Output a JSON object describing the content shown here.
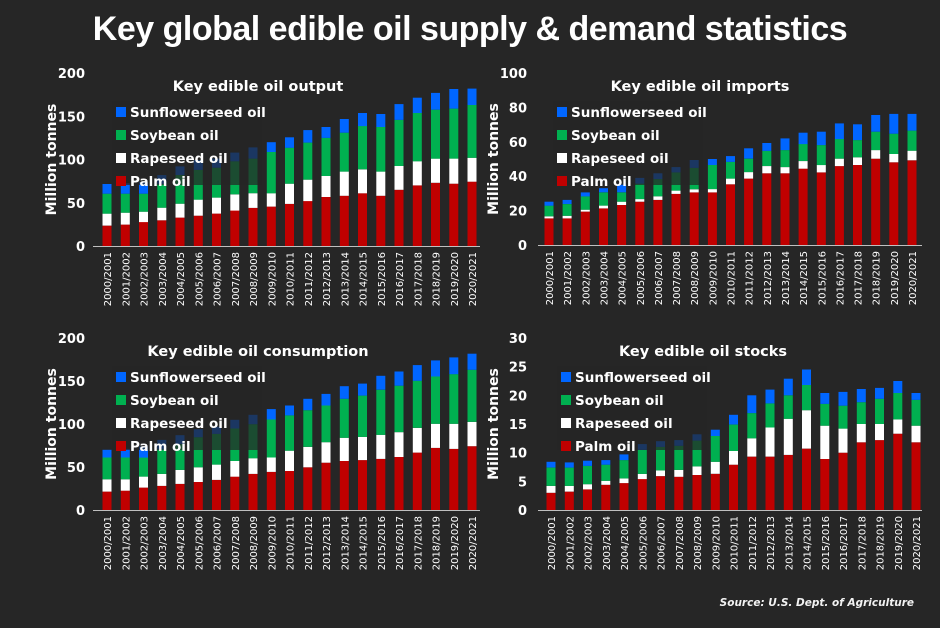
{
  "title": "Key global edible oil supply & demand statistics",
  "source": "Source: U.S. Dept. of Agriculture",
  "colors": {
    "background": "#262626",
    "Sunflowerseed oil": "#0066ff",
    "Soybean oil": "#00b050",
    "Rapeseed oil": "#ffffff",
    "Palm oil": "#c00000",
    "text": "#ffffff"
  },
  "chart_data": [
    {
      "type": "bar",
      "stacked": true,
      "title": "Key edible oil output",
      "ylabel": "Million tonnes",
      "xlabel": "",
      "ylim": [
        0,
        200
      ],
      "yticks": [
        0,
        50,
        100,
        150,
        200
      ],
      "legend": [
        "Sunflowerseed oil",
        "Soybean oil",
        "Rapeseed oil",
        "Palm oil"
      ],
      "legend_position": "top-left",
      "grid": false,
      "categories": [
        "2000/2001",
        "2001/2002",
        "2002/2003",
        "2003/2004",
        "2004/2005",
        "2005/2006",
        "2006/2007",
        "2007/2008",
        "2008/2009",
        "2009/2010",
        "2010/2011",
        "2011/2012",
        "2012/2013",
        "2013/2014",
        "2014/2015",
        "2015/2016",
        "2016/2017",
        "2017/2018",
        "2018/2019",
        "2019/2020",
        "2020/2021"
      ],
      "series": [
        {
          "name": "Palm oil",
          "values": [
            23.5,
            24.7,
            27.7,
            29.7,
            32.8,
            35.0,
            37.4,
            41.0,
            44.0,
            45.5,
            48.6,
            52.0,
            56.6,
            58.0,
            61.0,
            58.0,
            65.0,
            70.0,
            73.0,
            72.0,
            74.4
          ]
        },
        {
          "name": "Rapeseed oil",
          "values": [
            13.9,
            13.8,
            12.0,
            14.6,
            16.1,
            18.6,
            18.5,
            18.7,
            17.0,
            15.5,
            23.4,
            24.7,
            24.4,
            28.0,
            27.6,
            28.0,
            27.5,
            28.0,
            28.0,
            29.0,
            27.6
          ]
        },
        {
          "name": "Soybean oil",
          "values": [
            23.1,
            22.0,
            20.8,
            27.7,
            33.1,
            34.4,
            34.6,
            38.3,
            40.0,
            47.7,
            41.6,
            42.8,
            44.0,
            45.0,
            50.1,
            51.6,
            53.2,
            55.8,
            56.6,
            57.8,
            61.0
          ]
        },
        {
          "name": "Sunflowerseed oil",
          "values": [
            11.2,
            12.0,
            13.5,
            10.0,
            10.0,
            11.4,
            10.5,
            10.0,
            13.0,
            11.3,
            12.1,
            14.5,
            12.6,
            15.8,
            15.1,
            15.0,
            18.3,
            17.7,
            19.4,
            22.7,
            19.0
          ]
        }
      ]
    },
    {
      "type": "bar",
      "stacked": true,
      "title": "Key edible oil imports",
      "ylabel": "Million tonnes",
      "xlabel": "",
      "ylim": [
        0,
        100
      ],
      "yticks": [
        0,
        20,
        40,
        60,
        80,
        100
      ],
      "legend": [
        "Sunflowerseed oil",
        "Soybean oil",
        "Rapeseed oil",
        "Palm oil"
      ],
      "legend_position": "top-left",
      "grid": false,
      "categories": [
        "2000/2001",
        "2001/2002",
        "2002/2003",
        "2003/2004",
        "2004/2005",
        "2005/2006",
        "2006/2007",
        "2007/2008",
        "2008/2009",
        "2009/2010",
        "2010/2011",
        "2011/2012",
        "2012/2013",
        "2013/2014",
        "2014/2015",
        "2015/2016",
        "2016/2017",
        "2017/2018",
        "2018/2019",
        "2019/2020",
        "2020/2021"
      ],
      "series": [
        {
          "name": "Palm oil",
          "values": [
            15.5,
            15.5,
            19.4,
            21.3,
            23.3,
            25.2,
            26.2,
            29.7,
            30.6,
            30.6,
            35.3,
            38.6,
            41.7,
            41.7,
            44.4,
            42.2,
            45.9,
            46.5,
            50.2,
            48.1,
            49.2
          ]
        },
        {
          "name": "Rapeseed oil",
          "values": [
            1.2,
            1.5,
            1.1,
            1.6,
            1.9,
            1.5,
            2.1,
            1.9,
            1.8,
            1.9,
            3.3,
            3.8,
            4.2,
            3.6,
            4.4,
            4.3,
            4.3,
            4.5,
            5.0,
            4.8,
            5.6
          ]
        },
        {
          "name": "Soybean oil",
          "values": [
            6.2,
            6.8,
            7.8,
            7.7,
            5.4,
            9.0,
            10.0,
            10.6,
            12.4,
            14.0,
            9.7,
            7.8,
            8.8,
            9.9,
            9.9,
            11.6,
            11.4,
            10.0,
            10.7,
            11.8,
            11.7
          ]
        },
        {
          "name": "Sunflowerseed oil",
          "values": [
            2.3,
            2.4,
            2.3,
            2.4,
            4.9,
            3.3,
            3.4,
            3.1,
            4.6,
            3.5,
            3.4,
            6.0,
            4.6,
            6.8,
            6.6,
            7.8,
            9.1,
            9.2,
            9.7,
            11.5,
            9.7
          ]
        }
      ]
    },
    {
      "type": "bar",
      "stacked": true,
      "title": "Key edible oil consumption",
      "ylabel": "Million tonnes",
      "xlabel": "",
      "ylim": [
        0,
        200
      ],
      "yticks": [
        0,
        50,
        100,
        150,
        200
      ],
      "legend": [
        "Sunflowerseed oil",
        "Soybean oil",
        "Rapeseed oil",
        "Palm oil"
      ],
      "legend_position": "top-left",
      "grid": false,
      "categories": [
        "2000/2001",
        "2001/2002",
        "2002/2003",
        "2003/2004",
        "2004/2005",
        "2005/2006",
        "2006/2007",
        "2007/2008",
        "2008/2009",
        "2009/2010",
        "2010/2011",
        "2011/2012",
        "2012/2013",
        "2013/2014",
        "2014/2015",
        "2015/2016",
        "2016/2017",
        "2017/2018",
        "2018/2019",
        "2019/2020",
        "2020/2021"
      ],
      "series": [
        {
          "name": "Palm oil",
          "values": [
            21.4,
            22.5,
            26.0,
            28.0,
            30.3,
            32.6,
            35.0,
            38.8,
            42.0,
            44.3,
            45.4,
            49.7,
            55.0,
            57.0,
            58.0,
            59.4,
            61.7,
            66.8,
            72.2,
            71.0,
            74.2
          ]
        },
        {
          "name": "Rapeseed oil",
          "values": [
            14.3,
            13.2,
            12.8,
            14.0,
            16.3,
            17.1,
            17.8,
            18.2,
            18.2,
            16.7,
            23.6,
            23.7,
            23.8,
            27.0,
            27.0,
            28.0,
            28.8,
            28.7,
            28.0,
            29.2,
            28.3
          ]
        },
        {
          "name": "Soybean oil",
          "values": [
            25.3,
            25.3,
            22.2,
            28.5,
            30.0,
            35.0,
            35.7,
            37.8,
            39.6,
            44.2,
            41.0,
            42.6,
            42.7,
            45.3,
            48.0,
            52.4,
            54.0,
            54.8,
            55.1,
            57.8,
            60.5
          ]
        },
        {
          "name": "Sunflowerseed oil",
          "values": [
            9.0,
            10.0,
            13.0,
            11.0,
            10.4,
            9.3,
            8.2,
            10.1,
            10.9,
            12.1,
            11.5,
            13.3,
            13.5,
            14.7,
            14.0,
            16.2,
            16.5,
            18.2,
            18.7,
            19.5,
            18.7
          ]
        }
      ]
    },
    {
      "type": "bar",
      "stacked": true,
      "title": "Key edible oil stocks",
      "ylabel": "Million tonnes",
      "xlabel": "",
      "ylim": [
        0,
        30
      ],
      "yticks": [
        0,
        5,
        10,
        15,
        20,
        25,
        30
      ],
      "legend": [
        "Sunflowerseed oil",
        "Soybean oil",
        "Rapeseed oil",
        "Palm oil"
      ],
      "legend_position": "top-left",
      "grid": false,
      "categories": [
        "2000/2001",
        "2001/2002",
        "2002/2003",
        "2003/2004",
        "2004/2005",
        "2005/2006",
        "2006/2007",
        "2007/2008",
        "2008/2009",
        "2009/2010",
        "2010/2011",
        "2011/2012",
        "2012/2013",
        "2013/2014",
        "2014/2015",
        "2015/2016",
        "2016/2017",
        "2017/2018",
        "2018/2019",
        "2019/2020",
        "2020/2021"
      ],
      "series": [
        {
          "name": "Palm oil",
          "values": [
            3.0,
            3.2,
            3.6,
            4.4,
            4.7,
            5.4,
            5.9,
            5.8,
            6.1,
            6.3,
            7.9,
            9.3,
            9.3,
            9.6,
            10.7,
            8.9,
            10.0,
            11.8,
            12.2,
            13.3,
            11.8
          ]
        },
        {
          "name": "Rapeseed oil",
          "values": [
            1.2,
            1.0,
            0.9,
            0.7,
            0.8,
            0.9,
            1.0,
            1.2,
            1.5,
            2.1,
            2.4,
            3.2,
            5.1,
            6.3,
            6.7,
            5.8,
            4.2,
            3.2,
            2.8,
            2.5,
            2.9
          ]
        },
        {
          "name": "Soybean oil",
          "values": [
            3.2,
            3.2,
            3.2,
            2.8,
            3.2,
            4.2,
            4.1,
            4.2,
            4.5,
            4.5,
            4.6,
            4.4,
            4.2,
            4.1,
            4.4,
            3.8,
            4.0,
            3.8,
            4.4,
            4.6,
            4.5
          ]
        },
        {
          "name": "Sunflowerseed oil",
          "values": [
            1.0,
            0.9,
            0.9,
            0.8,
            1.0,
            1.0,
            1.0,
            1.0,
            1.1,
            1.1,
            1.7,
            3.1,
            2.4,
            2.9,
            2.7,
            1.9,
            2.4,
            2.3,
            1.9,
            2.1,
            1.2
          ]
        }
      ]
    }
  ]
}
